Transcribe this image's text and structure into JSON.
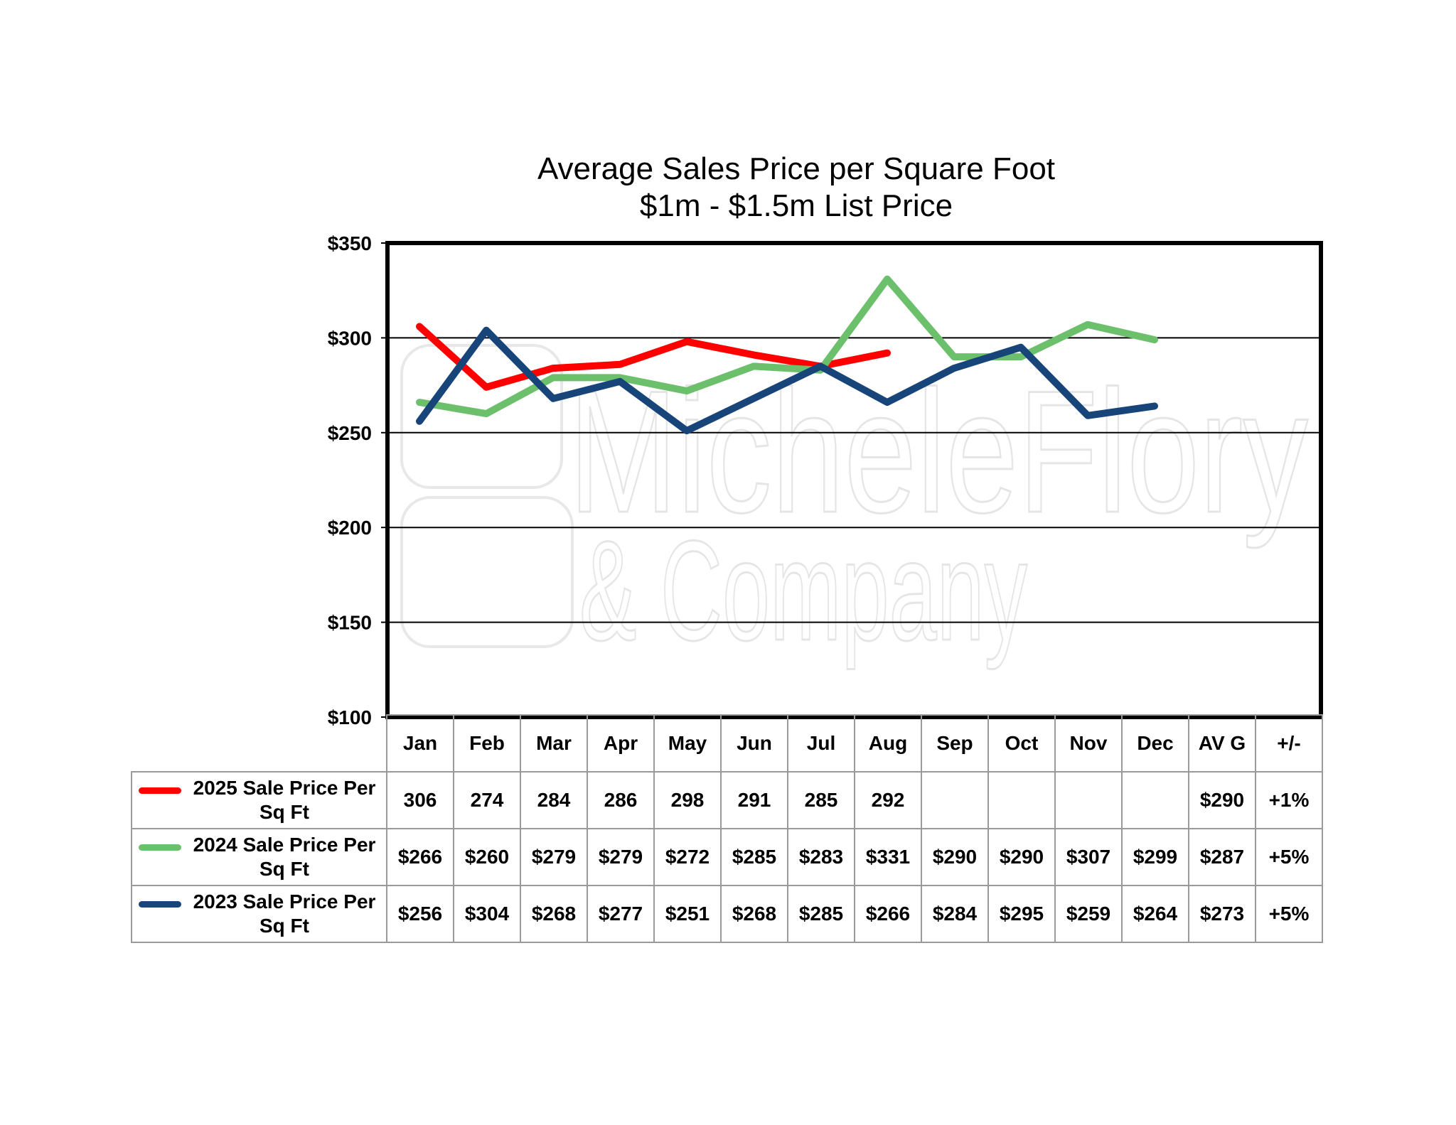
{
  "chart_data": {
    "type": "line",
    "title": "Average Sales Price per Square Foot",
    "subtitle": "$1m - $1.5m List Price",
    "categories": [
      "Jan",
      "Feb",
      "Mar",
      "Apr",
      "May",
      "Jun",
      "Jul",
      "Aug",
      "Sep",
      "Oct",
      "Nov",
      "Dec"
    ],
    "ylim": [
      100,
      350
    ],
    "yticks": [
      350,
      300,
      250,
      200,
      150,
      100
    ],
    "ytick_labels": [
      "$350",
      "$300",
      "$250",
      "$200",
      "$150",
      "$100"
    ],
    "grid": true,
    "series": [
      {
        "name": "2025 Sale Price Per Sq Ft",
        "color": "#ff0000",
        "values": [
          306,
          274,
          284,
          286,
          298,
          291,
          285,
          292,
          null,
          null,
          null,
          null
        ]
      },
      {
        "name": "2024 Sale Price Per Sq Ft",
        "color": "#6cc06c",
        "values": [
          266,
          260,
          279,
          279,
          272,
          285,
          283,
          331,
          290,
          290,
          307,
          299
        ]
      },
      {
        "name": "2023 Sale Price Per Sq Ft",
        "color": "#17457a",
        "values": [
          256,
          304,
          268,
          277,
          251,
          268,
          285,
          266,
          284,
          295,
          259,
          264
        ]
      }
    ]
  },
  "table": {
    "columns": [
      "Jan",
      "Feb",
      "Mar",
      "Apr",
      "May",
      "Jun",
      "Jul",
      "Aug",
      "Sep",
      "Oct",
      "Nov",
      "Dec",
      "AV G",
      "+/-"
    ],
    "rows": [
      {
        "label": "2025 Sale Price Per Sq Ft",
        "color": "#ff0000",
        "cells": [
          "306",
          "274",
          "284",
          "286",
          "298",
          "291",
          "285",
          "292",
          "",
          "",
          "",
          "",
          "$290",
          "+1%"
        ]
      },
      {
        "label": "2024 Sale Price Per Sq Ft",
        "color": "#6cc06c",
        "cells": [
          "$266",
          "$260",
          "$279",
          "$279",
          "$272",
          "$285",
          "$283",
          "$331",
          "$290",
          "$290",
          "$307",
          "$299",
          "$287",
          "+5%"
        ]
      },
      {
        "label": "2023 Sale Price Per Sq Ft",
        "color": "#17457a",
        "cells": [
          "$256",
          "$304",
          "$268",
          "$277",
          "$251",
          "$268",
          "$285",
          "$266",
          "$284",
          "$295",
          "$259",
          "$264",
          "$273",
          "+5%"
        ]
      }
    ]
  },
  "watermark": {
    "line1": "MicheleFlory",
    "line2": "& Company"
  }
}
